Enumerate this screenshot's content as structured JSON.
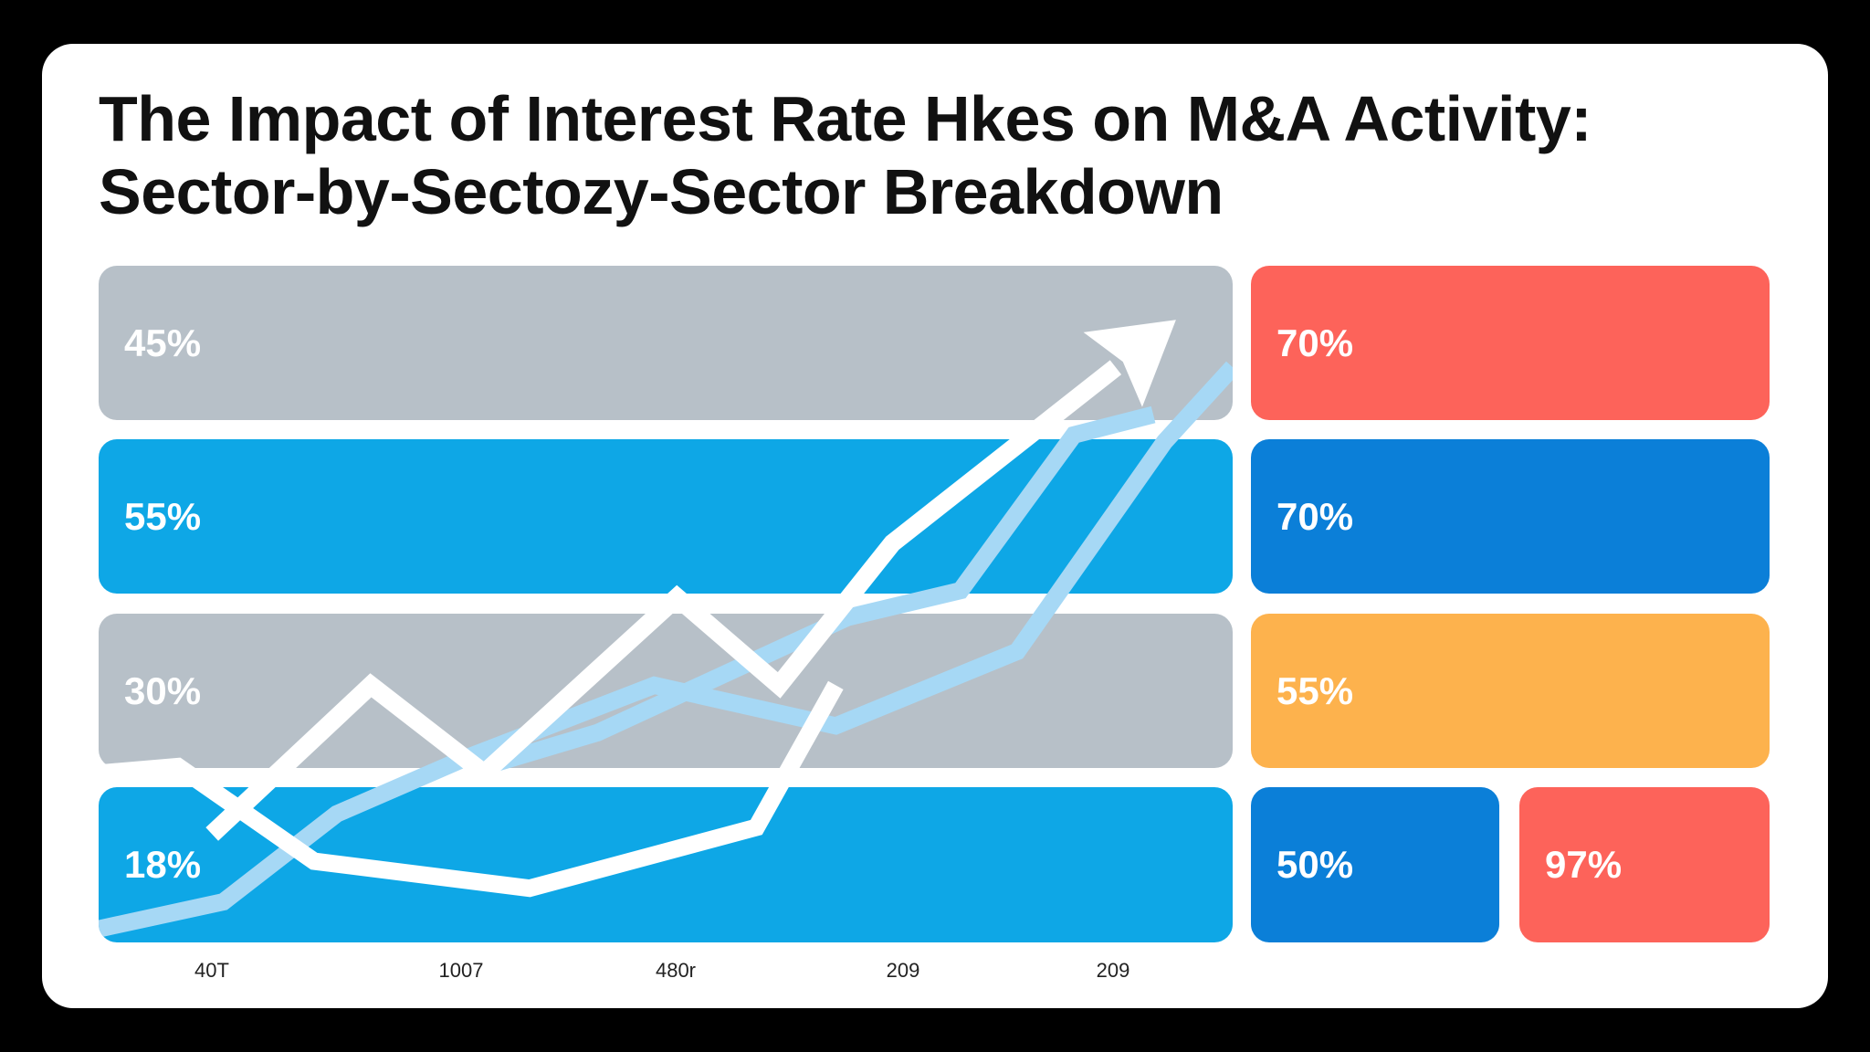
{
  "title": {
    "line1": "The Impact of Interest Rate Hkes on M&A Activity:",
    "line2": "Sector-by-Sectozy-Sector Breakdown"
  },
  "colors": {
    "gray": "#b7c0c8",
    "sky": "#0ea7e6",
    "blue": "#0b7fd8",
    "red": "#fd635a",
    "orange": "#fdb24d",
    "line_white": "#ffffff",
    "line_light": "#a6d8f5"
  },
  "chart_data": {
    "type": "line",
    "title": "The Impact of Interest Rate Hkes on M&A Activity: Sector-by-Sectozy-Sector Breakdown",
    "x_tick_labels": [
      "40T",
      "1007",
      "480r",
      "209",
      "209"
    ],
    "xlim": [
      0,
      10
    ],
    "ylim": [
      0,
      100
    ],
    "left_bands": [
      {
        "label": "45%",
        "color": "gray"
      },
      {
        "label": "55%",
        "color": "sky"
      },
      {
        "label": "30%",
        "color": "gray"
      },
      {
        "label": "18%",
        "color": "sky"
      }
    ],
    "right_blocks": [
      {
        "label": "70%",
        "color": "red"
      },
      {
        "label": "70%",
        "color": "blue"
      },
      {
        "label": "55%",
        "color": "orange"
      },
      {
        "label": "50%",
        "color": "blue"
      },
      {
        "label": "97%",
        "color": "red"
      }
    ],
    "series": [
      {
        "name": "trend-arrow",
        "style": "white-arrow",
        "x": [
          1.0,
          2.4,
          3.4,
          5.1,
          6.0,
          7.0,
          9.5
        ],
        "y": [
          16,
          38,
          25,
          51,
          38,
          59,
          92
        ]
      },
      {
        "name": "white-line",
        "style": "white",
        "x": [
          0.0,
          0.7,
          1.9,
          3.8,
          5.8,
          6.5
        ],
        "y": [
          25,
          26,
          12,
          8,
          17,
          38
        ]
      },
      {
        "name": "light-line-a",
        "style": "light",
        "x": [
          3.4,
          4.4,
          6.6,
          7.6,
          8.6,
          9.3
        ],
        "y": [
          26,
          31,
          48,
          52,
          75,
          78
        ]
      },
      {
        "name": "light-line-b",
        "style": "light",
        "x": [
          0.0,
          1.1,
          2.1,
          3.2,
          4.9,
          6.5,
          8.1,
          9.4,
          10.0
        ],
        "y": [
          2,
          6,
          19,
          27,
          38,
          32,
          43,
          74,
          85
        ]
      }
    ]
  }
}
